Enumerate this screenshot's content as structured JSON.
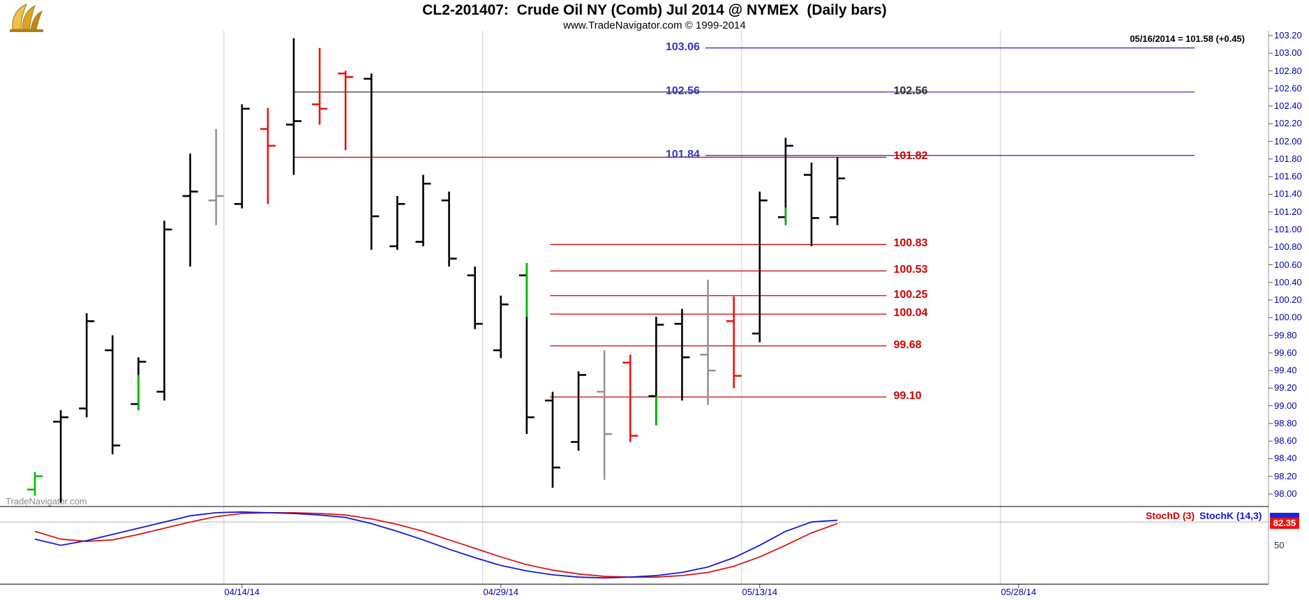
{
  "header": {
    "title": "CL2-201407:  Crude Oil NY (Comb) Jul 2014 @ NYMEX  (Daily bars)",
    "subtitle": "www.TradeNavigator.com © 1999-2014",
    "quote_note": "05/16/2014 = 101.58 (+0.45)",
    "watermark": "TradeNavigator.com"
  },
  "colors": {
    "bar_black": "#000000",
    "bar_red": "#ee1111",
    "bar_green": "#00bb00",
    "bar_gray": "#949494",
    "line_blue": "#3434c8",
    "line_red": "#cc0000",
    "line_black": "#303030",
    "stoch_k": "#1616d6",
    "stoch_d": "#d61616",
    "axis_text": "#0000ad",
    "badge_red_bg": "#ee1111",
    "badge_blue_bg": "#2222dd"
  },
  "chart_data": {
    "type": "ohlc-bar",
    "title": "CL2-201407:  Crude Oil NY (Comb) Jul 2014 @ NYMEX  (Daily bars)",
    "price_axis": {
      "min": 98.0,
      "max": 103.2,
      "step": 0.2,
      "tick_labels": [
        "103.20",
        "103.00",
        "102.80",
        "102.60",
        "102.40",
        "102.20",
        "102.00",
        "101.80",
        "101.60",
        "101.40",
        "101.20",
        "101.00",
        "100.80",
        "100.60",
        "100.40",
        "100.20",
        "100.00",
        "99.80",
        "99.60",
        "99.40",
        "99.20",
        "99.00",
        "98.80",
        "98.60",
        "98.40",
        "98.20",
        "98.00"
      ]
    },
    "date_axis": {
      "labels": [
        {
          "text": "04/14/14",
          "index": 8
        },
        {
          "text": "04/29/14",
          "index": 18
        },
        {
          "text": "05/13/14",
          "index": 28
        },
        {
          "text": "05/28/14",
          "index": 38
        }
      ]
    },
    "bars": [
      {
        "date": "04/02/14",
        "o": 98.05,
        "h": 98.25,
        "l": 97.98,
        "c": 98.2,
        "color": "green"
      },
      {
        "date": "04/03/14",
        "o": 98.82,
        "h": 98.95,
        "l": 97.9,
        "c": 98.87,
        "color": "black"
      },
      {
        "date": "04/04/14",
        "o": 98.97,
        "h": 100.05,
        "l": 98.87,
        "c": 99.96,
        "color": "black"
      },
      {
        "date": "04/07/14",
        "o": 99.63,
        "h": 99.8,
        "l": 98.45,
        "c": 98.55,
        "color": "black"
      },
      {
        "date": "04/08/14",
        "o": 99.02,
        "h": 99.55,
        "l": 98.95,
        "c": 99.5,
        "color": "black",
        "seg": [
          98.95,
          99.35
        ]
      },
      {
        "date": "04/09/14",
        "o": 99.16,
        "h": 101.1,
        "l": 99.06,
        "c": 101.0,
        "color": "black"
      },
      {
        "date": "04/10/14",
        "o": 101.38,
        "h": 101.86,
        "l": 100.58,
        "c": 101.43,
        "color": "black"
      },
      {
        "date": "04/11/14",
        "o": 101.33,
        "h": 102.14,
        "l": 101.05,
        "c": 101.38,
        "color": "gray"
      },
      {
        "date": "04/14/14",
        "o": 101.29,
        "h": 102.42,
        "l": 101.24,
        "c": 102.37,
        "color": "black"
      },
      {
        "date": "04/15/14",
        "o": 102.14,
        "h": 102.38,
        "l": 101.29,
        "c": 101.95,
        "color": "red"
      },
      {
        "date": "04/16/14",
        "o": 102.19,
        "h": 103.17,
        "l": 101.62,
        "c": 102.23,
        "color": "black"
      },
      {
        "date": "04/17/14",
        "o": 102.42,
        "h": 103.06,
        "l": 102.19,
        "c": 102.37,
        "color": "red"
      },
      {
        "date": "04/21/14",
        "o": 102.77,
        "h": 102.8,
        "l": 101.9,
        "c": 102.73,
        "color": "red"
      },
      {
        "date": "04/22/14",
        "o": 102.71,
        "h": 102.77,
        "l": 100.77,
        "c": 101.15,
        "color": "black"
      },
      {
        "date": "04/23/14",
        "o": 100.81,
        "h": 101.38,
        "l": 100.77,
        "c": 101.29,
        "color": "black"
      },
      {
        "date": "04/24/14",
        "o": 100.86,
        "h": 101.62,
        "l": 100.81,
        "c": 101.52,
        "color": "black"
      },
      {
        "date": "04/25/14",
        "o": 101.33,
        "h": 101.43,
        "l": 100.58,
        "c": 100.67,
        "color": "black"
      },
      {
        "date": "04/28/14",
        "o": 100.48,
        "h": 100.58,
        "l": 99.87,
        "c": 99.93,
        "color": "black"
      },
      {
        "date": "04/29/14",
        "o": 99.63,
        "h": 100.25,
        "l": 99.54,
        "c": 100.15,
        "color": "black"
      },
      {
        "date": "04/30/14",
        "o": 100.48,
        "h": 100.62,
        "l": 98.68,
        "c": 98.87,
        "color": "black",
        "seg": [
          100.01,
          100.62
        ]
      },
      {
        "date": "05/01/14",
        "o": 99.06,
        "h": 99.16,
        "l": 98.07,
        "c": 98.3,
        "color": "black"
      },
      {
        "date": "05/02/14",
        "o": 98.59,
        "h": 99.39,
        "l": 98.49,
        "c": 99.35,
        "color": "black"
      },
      {
        "date": "05/05/14",
        "o": 99.16,
        "h": 99.63,
        "l": 98.16,
        "c": 98.68,
        "color": "gray"
      },
      {
        "date": "05/06/14",
        "o": 99.49,
        "h": 99.58,
        "l": 98.59,
        "c": 98.66,
        "color": "red"
      },
      {
        "date": "05/07/14",
        "o": 99.11,
        "h": 100.01,
        "l": 98.78,
        "c": 99.92,
        "color": "black",
        "seg": [
          98.78,
          99.11
        ]
      },
      {
        "date": "05/08/14",
        "o": 99.93,
        "h": 100.1,
        "l": 99.06,
        "c": 99.55,
        "color": "black"
      },
      {
        "date": "05/09/14",
        "o": 99.58,
        "h": 100.43,
        "l": 99.01,
        "c": 99.4,
        "color": "gray"
      },
      {
        "date": "05/12/14",
        "o": 99.96,
        "h": 100.24,
        "l": 99.2,
        "c": 99.34,
        "color": "red"
      },
      {
        "date": "05/13/14",
        "o": 99.82,
        "h": 101.43,
        "l": 99.72,
        "c": 101.33,
        "color": "black"
      },
      {
        "date": "05/14/14",
        "o": 101.14,
        "h": 102.04,
        "l": 101.05,
        "c": 101.95,
        "color": "black",
        "seg": [
          101.05,
          101.25
        ]
      },
      {
        "date": "05/15/14",
        "o": 101.62,
        "h": 101.76,
        "l": 100.81,
        "c": 101.13,
        "color": "black"
      },
      {
        "date": "05/16/14",
        "o": 101.14,
        "h": 101.82,
        "l": 101.05,
        "c": 101.58,
        "color": "black"
      }
    ],
    "price_lines": [
      {
        "value": 102.56,
        "label": "102.56",
        "color": "black",
        "from": 10,
        "to": 32.9,
        "label_side": "right"
      },
      {
        "value": 101.82,
        "label": "101.82",
        "color": "red",
        "from": 10,
        "to": 32.9,
        "label_side": "right"
      },
      {
        "value": 100.83,
        "label": "100.83",
        "color": "red",
        "from": 19.9,
        "to": 32.9,
        "label_side": "right"
      },
      {
        "value": 100.53,
        "label": "100.53",
        "color": "red",
        "from": 19.9,
        "to": 32.9,
        "label_side": "right"
      },
      {
        "value": 100.25,
        "label": "100.25",
        "color": "red",
        "from": 19.9,
        "to": 32.9,
        "label_side": "right"
      },
      {
        "value": 100.04,
        "label": "100.04",
        "color": "red",
        "from": 19.9,
        "to": 32.9,
        "label_side": "right"
      },
      {
        "value": 99.68,
        "label": "99.68",
        "color": "red",
        "from": 19.9,
        "to": 32.9,
        "label_side": "right"
      },
      {
        "value": 99.1,
        "label": "99.10",
        "color": "red",
        "from": 19.9,
        "to": 32.9,
        "label_side": "right"
      },
      {
        "value": 103.06,
        "label": "103.06",
        "color": "blue",
        "from": 25.9,
        "to": 44.8,
        "label_side": "left"
      },
      {
        "value": 102.56,
        "label": "102.56",
        "color": "blue",
        "from": 25.9,
        "to": 44.8,
        "label_side": "left"
      },
      {
        "value": 101.84,
        "label": "101.84",
        "color": "blue",
        "from": 25.9,
        "to": 44.8,
        "label_side": "left"
      }
    ],
    "stoch": {
      "label_d": "StochD (3)",
      "label_k": "StochK (14,3)",
      "last_value": "82.35",
      "level_label": "50",
      "levels_drawn": [
        80
      ],
      "k": [
        58,
        50,
        56,
        64,
        72,
        80,
        88,
        92,
        93,
        92,
        91,
        89,
        86,
        78,
        68,
        57,
        45,
        34,
        24,
        17,
        12,
        9,
        8,
        9,
        11,
        15,
        22,
        34,
        50,
        68,
        80,
        82.35
      ],
      "d": [
        68,
        58,
        55,
        57,
        64,
        72,
        80,
        87,
        91,
        92,
        92,
        91,
        89,
        84,
        77,
        68,
        57,
        46,
        35,
        25,
        18,
        13,
        10,
        9,
        9,
        11,
        15,
        23,
        35,
        50,
        66,
        78
      ]
    }
  }
}
